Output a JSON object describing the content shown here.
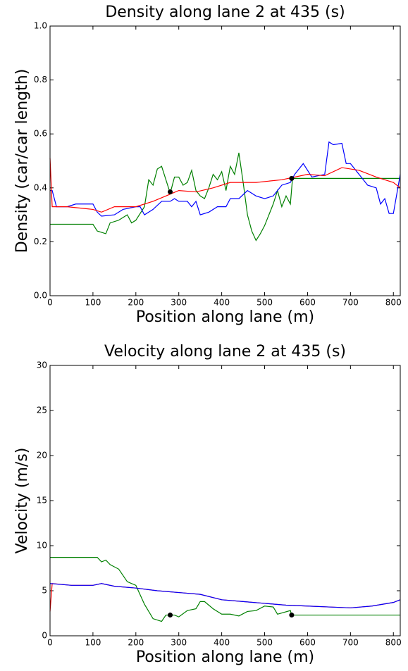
{
  "chart_data": [
    {
      "type": "line",
      "title": "Density along lane 2 at 435 (s)",
      "x_label": "Position along lane (m)",
      "y_label": "Density (car/car length)",
      "xlim": [
        0,
        816
      ],
      "ylim": [
        0,
        1
      ],
      "xticks": [
        0,
        100,
        200,
        300,
        400,
        500,
        600,
        700,
        800
      ],
      "yticks": [
        {
          "value": 0,
          "label": "0.0"
        },
        0.2,
        0.4,
        0.6,
        0.8,
        {
          "value": 1,
          "label": "1.0"
        }
      ],
      "series": [
        {
          "color": "#008000",
          "mode": "line",
          "x": [
            0,
            100,
            110,
            130,
            140,
            160,
            180,
            190,
            200,
            220,
            230,
            240,
            250,
            260,
            270,
            280,
            290,
            300,
            310,
            320,
            330,
            340,
            350,
            360,
            370,
            380,
            390,
            400,
            410,
            420,
            430,
            440,
            450,
            460,
            470,
            480,
            490,
            500,
            510,
            520,
            530,
            540,
            550,
            560,
            565,
            816
          ],
          "values": [
            0.265,
            0.265,
            0.24,
            0.23,
            0.27,
            0.28,
            0.3,
            0.27,
            0.28,
            0.33,
            0.43,
            0.41,
            0.47,
            0.48,
            0.43,
            0.38,
            0.44,
            0.44,
            0.41,
            0.42,
            0.465,
            0.39,
            0.37,
            0.36,
            0.4,
            0.45,
            0.43,
            0.46,
            0.39,
            0.48,
            0.45,
            0.53,
            0.42,
            0.3,
            0.24,
            0.205,
            0.23,
            0.26,
            0.3,
            0.34,
            0.39,
            0.33,
            0.37,
            0.34,
            0.435,
            0.435
          ]
        },
        {
          "color": "#0000ff",
          "mode": "line",
          "x": [
            0,
            5,
            15,
            40,
            60,
            100,
            110,
            120,
            150,
            170,
            200,
            210,
            220,
            240,
            260,
            280,
            290,
            300,
            320,
            330,
            340,
            350,
            370,
            390,
            410,
            420,
            440,
            460,
            480,
            500,
            520,
            540,
            560,
            570,
            590,
            610,
            640,
            650,
            660,
            680,
            690,
            700,
            720,
            740,
            760,
            770,
            780,
            790,
            800,
            816
          ],
          "values": [
            0.39,
            0.39,
            0.33,
            0.33,
            0.34,
            0.34,
            0.31,
            0.295,
            0.3,
            0.32,
            0.33,
            0.33,
            0.3,
            0.32,
            0.35,
            0.35,
            0.36,
            0.35,
            0.35,
            0.33,
            0.35,
            0.3,
            0.31,
            0.33,
            0.33,
            0.36,
            0.36,
            0.39,
            0.37,
            0.36,
            0.37,
            0.41,
            0.42,
            0.45,
            0.49,
            0.44,
            0.45,
            0.57,
            0.56,
            0.565,
            0.49,
            0.49,
            0.45,
            0.41,
            0.4,
            0.34,
            0.36,
            0.305,
            0.305,
            0.45
          ]
        },
        {
          "color": "#ff0000",
          "mode": "line",
          "x": [
            0,
            5,
            40,
            100,
            120,
            150,
            200,
            240,
            270,
            300,
            340,
            380,
            420,
            480,
            540,
            600,
            640,
            680,
            720,
            760,
            800,
            816
          ],
          "values": [
            0.51,
            0.33,
            0.33,
            0.32,
            0.31,
            0.33,
            0.33,
            0.35,
            0.37,
            0.39,
            0.385,
            0.4,
            0.42,
            0.42,
            0.43,
            0.45,
            0.445,
            0.475,
            0.465,
            0.44,
            0.42,
            0.4
          ]
        },
        {
          "color": "#000000",
          "mode": "markers",
          "x": [
            280,
            563
          ],
          "values": [
            0.385,
            0.435
          ]
        }
      ]
    },
    {
      "type": "line",
      "title": "Velocity along lane 2 at 435 (s)",
      "x_label": "Position along lane (m)",
      "y_label": "Velocity (m/s)",
      "xlim": [
        0,
        816
      ],
      "ylim": [
        0,
        30
      ],
      "xticks": [
        0,
        100,
        200,
        300,
        400,
        500,
        600,
        700,
        800
      ],
      "yticks": [
        0,
        5,
        10,
        15,
        20,
        25,
        30
      ],
      "series": [
        {
          "color": "#008000",
          "mode": "line",
          "x": [
            0,
            110,
            120,
            130,
            140,
            160,
            180,
            200,
            220,
            240,
            260,
            270,
            290,
            300,
            320,
            340,
            350,
            360,
            380,
            400,
            420,
            440,
            460,
            480,
            500,
            520,
            530,
            560,
            563,
            816
          ],
          "values": [
            8.7,
            8.7,
            8.2,
            8.4,
            7.9,
            7.4,
            6.0,
            5.6,
            3.5,
            1.9,
            1.6,
            2.3,
            2.3,
            2.1,
            2.8,
            3.0,
            3.8,
            3.8,
            3.0,
            2.4,
            2.4,
            2.2,
            2.7,
            2.8,
            3.3,
            3.2,
            2.4,
            2.8,
            2.3,
            2.3
          ]
        },
        {
          "color": "#ff0000",
          "mode": "line",
          "x": [
            0,
            5,
            50,
            100,
            120,
            150,
            200,
            250,
            300,
            350,
            400,
            450,
            500,
            550,
            600,
            650,
            700,
            750,
            800,
            816
          ],
          "values": [
            2.7,
            5.8,
            5.6,
            5.6,
            5.8,
            5.5,
            5.3,
            5.0,
            4.8,
            4.6,
            4.0,
            3.8,
            3.6,
            3.4,
            3.3,
            3.2,
            3.1,
            3.3,
            3.7,
            4.0
          ]
        },
        {
          "color": "#0000ff",
          "mode": "line",
          "x": [
            0,
            50,
            100,
            120,
            150,
            200,
            250,
            300,
            350,
            400,
            450,
            500,
            550,
            600,
            650,
            700,
            750,
            800,
            816
          ],
          "values": [
            5.8,
            5.6,
            5.6,
            5.8,
            5.5,
            5.3,
            5.0,
            4.8,
            4.6,
            4.0,
            3.8,
            3.6,
            3.4,
            3.3,
            3.2,
            3.1,
            3.3,
            3.7,
            4.0
          ]
        },
        {
          "color": "#000000",
          "mode": "markers",
          "x": [
            280,
            563
          ],
          "values": [
            2.3,
            2.3
          ]
        }
      ]
    }
  ]
}
